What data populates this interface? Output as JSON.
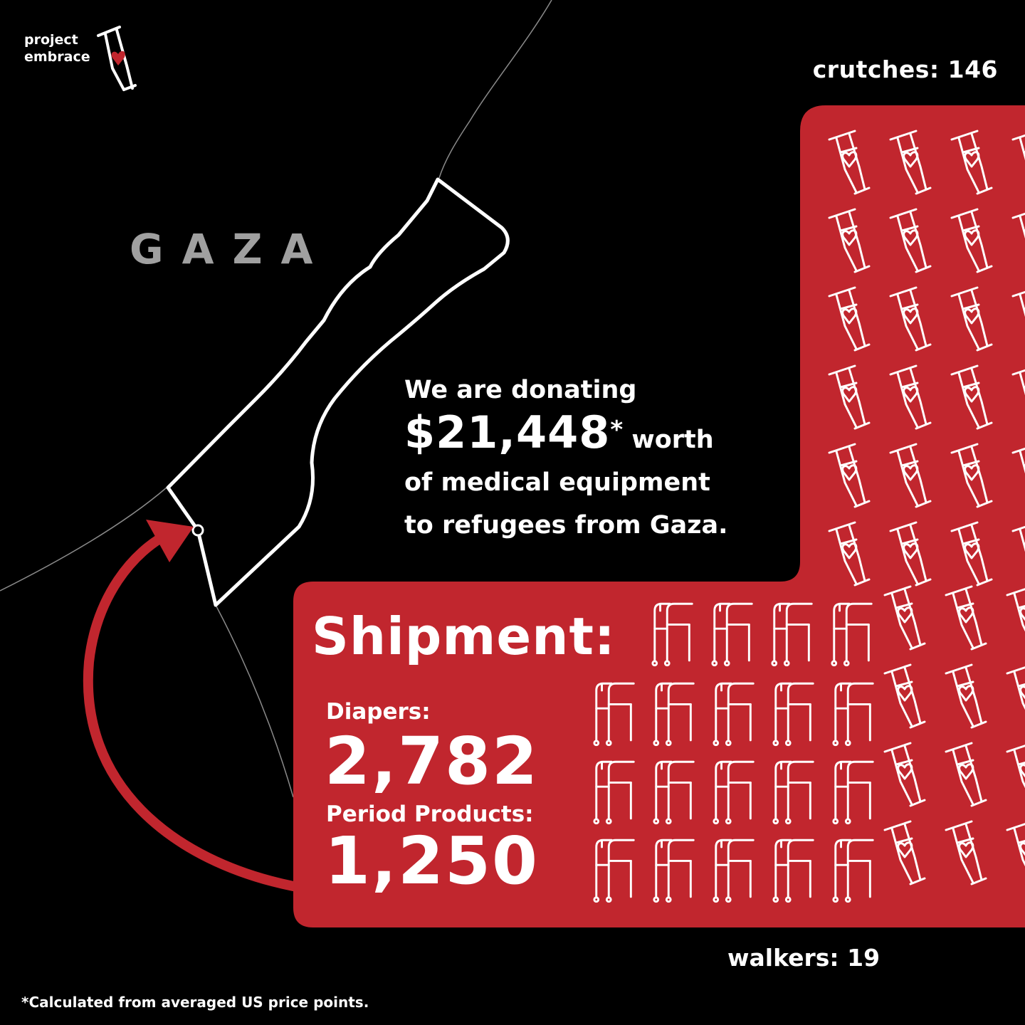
{
  "brand": {
    "line1": "project",
    "line2": "embrace",
    "icon": "crutch-heart-icon"
  },
  "map": {
    "region_label": "GAZA",
    "outline_icon": "gaza-strip-outline",
    "arrow_icon": "curved-arrow-icon"
  },
  "headline": {
    "line1": "We are donating",
    "amount": "$21,448",
    "asterisk": "*",
    "after_amount": "worth",
    "line3": "of medical equipment",
    "line4": "to refugees from Gaza."
  },
  "shipment": {
    "title": "Shipment:",
    "diapers_label": "Diapers:",
    "diapers_value": "2,782",
    "period_label": "Period Products:",
    "period_value": "1,250"
  },
  "counts": {
    "crutches_label": "crutches: 146",
    "walkers_label": "walkers: 19",
    "crutch_icon": "crutch-heart-icon",
    "walker_icon": "walker-icon"
  },
  "footnote": "*Calculated from averaged US price points.",
  "colors": {
    "background": "#000000",
    "accent_red": "#c1262e",
    "text": "#ffffff",
    "muted": "#a0a0a0"
  }
}
